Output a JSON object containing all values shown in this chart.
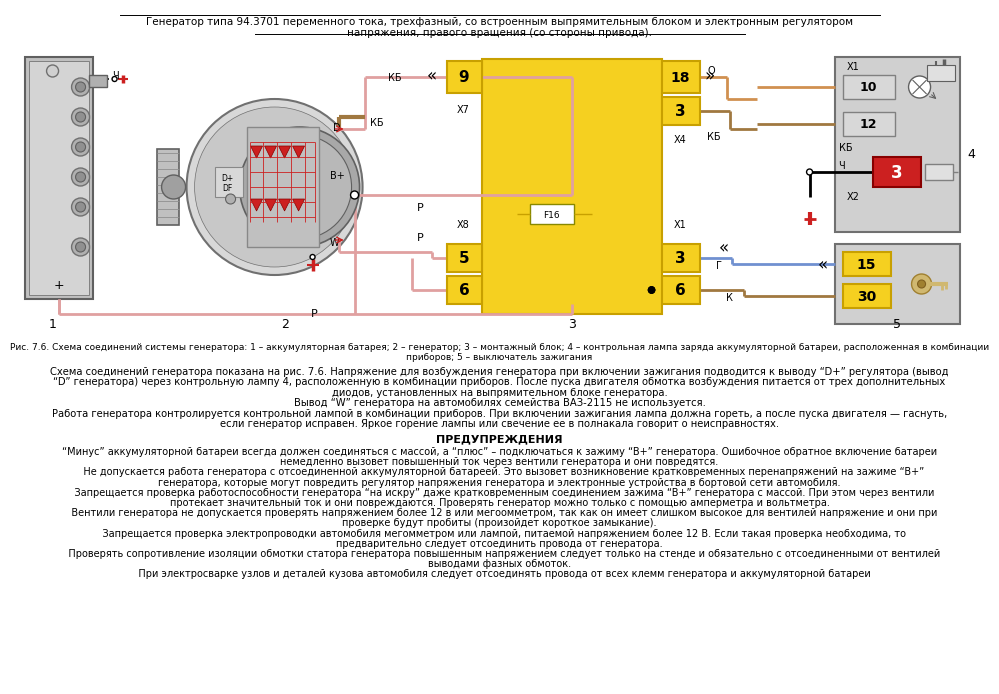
{
  "title_line1": "Генератор типа 94.3701 переменного тока, трехфазный, со встроенным выпрямительным блоком и электронным регулятором",
  "title_line2": "напряжения, правого вращения (со стороны привода).",
  "fig_caption_line1": "Рис. 7.6. Схема соединений системы генератора: 1 – аккумуляторная батарея; 2 – генератор; 3 – монтажный блок; 4 – контрольная лампа заряда аккумуляторной батареи, расположенная в комбинации",
  "fig_caption_line2": "приборов; 5 – выключатель зажигания",
  "body_lines": [
    "Схема соединений генератора показана на рис. 7.6. Напряжение для возбуждения генератора при включении зажигания подводится к выводу “D+” регулятора (вывод",
    "“D” генератора) через контрольную лампу 4, расположенную в комбинации приборов. После пуска двигателя обмотка возбуждения питается от трех дополнительных",
    "диодов, установленных на выпрямительном блоке генератора.",
    "Вывод “W” генератора на автомобилях семейства ВАЗ-2115 не используется.",
    "Работа генератора контролируется контрольной лампой в комбинации приборов. При включении зажигания лампа должна гореть, а после пуска двигателя — гаснуть,",
    "если генератор исправен. Яркое горение лампы или свечение ее в полнакала говорит о неисправностях."
  ],
  "warning_title": "ПРЕДУПРЕЖДЕНИЯ",
  "warning_lines": [
    "“Минус” аккумуляторной батареи всегда должен соединяться с массой, а “плюс” – подключаться к зажиму “B+” генератора. Ошибочное обратное включение батареи",
    "немедленно вызовет повышенный ток через вентили генератора и они повредятся.",
    "   Не допускается работа генератора с отсоединенной аккумуляторной батареей. Это вызовет возникновение кратковременных перенапряжений на зажиме “B+”",
    "генератора, которые могут повредить регулятор напряжения генератора и электронные устройства в бортовой сети автомобиля.",
    "   Запрещается проверка работоспособности генератора “на искру” даже кратковременным соединением зажима “B+” генератора с массой. При этом через вентили",
    "протекает значительный ток и они повреждаются. Проверять генератор можно только с помощью амперметра и вольтметра.",
    "   Вентили генератора не допускается проверять напряжением более 12 в или мегоомметром, так как он имеет слишком высокое для вентилей напряжение и они при",
    "проверке будут пробиты (произойдет короткое замыкание).",
    "   Запрещается проверка электропроводки автомобиля мегомметром или лампой, питаемой напряжением более 12 В. Если такая проверка необходима, то",
    "предварительно следует отсоединить провода от генератора.",
    "   Проверять сопротивление изоляции обмотки статора генератора повышенным напряжением следует только на стенде и обязательно с отсоединенными от вентилей",
    "выводами фазных обмоток.",
    "   При электросварке узлов и деталей кузова автомобиля следует отсоединять провода от всех клемм генератора и аккумуляторной батареи"
  ],
  "bg_color": "#ffffff",
  "text_color": "#000000",
  "yellow_fill": "#f5d020",
  "yellow_edge": "#c8a000",
  "gray_fill": "#c8c8c8",
  "gray_edge": "#808080",
  "red_fill": "#cc2020",
  "pink_wire": "#e0a0a0",
  "blue_wire": "#7090d0",
  "brown_wire": "#a07840",
  "orange_wire": "#d09050"
}
